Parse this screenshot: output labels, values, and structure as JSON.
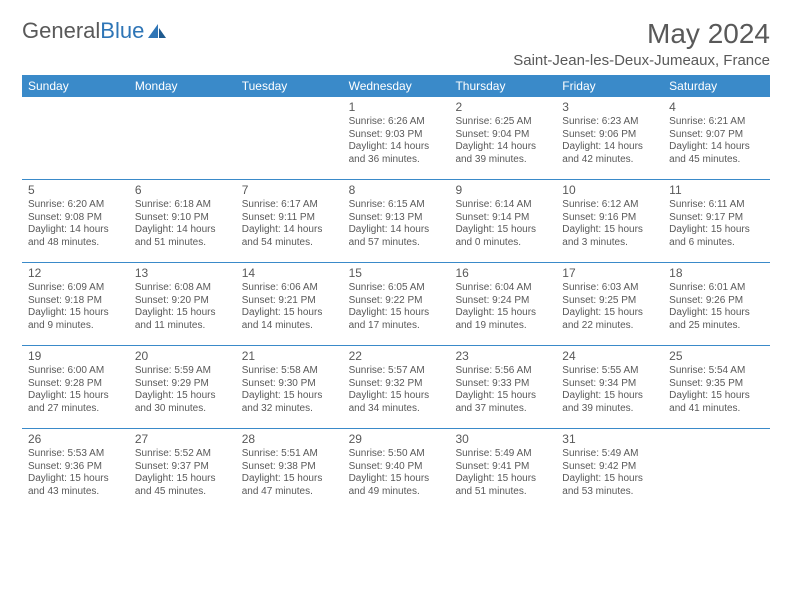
{
  "logo": {
    "text1": "General",
    "text2": "Blue"
  },
  "title": "May 2024",
  "location": "Saint-Jean-les-Deux-Jumeaux, France",
  "colors": {
    "header_bg": "#3a8ac9",
    "header_text": "#ffffff",
    "text": "#595959",
    "rule": "#3a8ac9",
    "logo_gray": "#595959",
    "logo_blue": "#2e75b6",
    "background": "#ffffff"
  },
  "day_names": [
    "Sunday",
    "Monday",
    "Tuesday",
    "Wednesday",
    "Thursday",
    "Friday",
    "Saturday"
  ],
  "weeks": [
    [
      null,
      null,
      null,
      {
        "n": "1",
        "sr": "6:26 AM",
        "ss": "9:03 PM",
        "dl": "14 hours and 36 minutes."
      },
      {
        "n": "2",
        "sr": "6:25 AM",
        "ss": "9:04 PM",
        "dl": "14 hours and 39 minutes."
      },
      {
        "n": "3",
        "sr": "6:23 AM",
        "ss": "9:06 PM",
        "dl": "14 hours and 42 minutes."
      },
      {
        "n": "4",
        "sr": "6:21 AM",
        "ss": "9:07 PM",
        "dl": "14 hours and 45 minutes."
      }
    ],
    [
      {
        "n": "5",
        "sr": "6:20 AM",
        "ss": "9:08 PM",
        "dl": "14 hours and 48 minutes."
      },
      {
        "n": "6",
        "sr": "6:18 AM",
        "ss": "9:10 PM",
        "dl": "14 hours and 51 minutes."
      },
      {
        "n": "7",
        "sr": "6:17 AM",
        "ss": "9:11 PM",
        "dl": "14 hours and 54 minutes."
      },
      {
        "n": "8",
        "sr": "6:15 AM",
        "ss": "9:13 PM",
        "dl": "14 hours and 57 minutes."
      },
      {
        "n": "9",
        "sr": "6:14 AM",
        "ss": "9:14 PM",
        "dl": "15 hours and 0 minutes."
      },
      {
        "n": "10",
        "sr": "6:12 AM",
        "ss": "9:16 PM",
        "dl": "15 hours and 3 minutes."
      },
      {
        "n": "11",
        "sr": "6:11 AM",
        "ss": "9:17 PM",
        "dl": "15 hours and 6 minutes."
      }
    ],
    [
      {
        "n": "12",
        "sr": "6:09 AM",
        "ss": "9:18 PM",
        "dl": "15 hours and 9 minutes."
      },
      {
        "n": "13",
        "sr": "6:08 AM",
        "ss": "9:20 PM",
        "dl": "15 hours and 11 minutes."
      },
      {
        "n": "14",
        "sr": "6:06 AM",
        "ss": "9:21 PM",
        "dl": "15 hours and 14 minutes."
      },
      {
        "n": "15",
        "sr": "6:05 AM",
        "ss": "9:22 PM",
        "dl": "15 hours and 17 minutes."
      },
      {
        "n": "16",
        "sr": "6:04 AM",
        "ss": "9:24 PM",
        "dl": "15 hours and 19 minutes."
      },
      {
        "n": "17",
        "sr": "6:03 AM",
        "ss": "9:25 PM",
        "dl": "15 hours and 22 minutes."
      },
      {
        "n": "18",
        "sr": "6:01 AM",
        "ss": "9:26 PM",
        "dl": "15 hours and 25 minutes."
      }
    ],
    [
      {
        "n": "19",
        "sr": "6:00 AM",
        "ss": "9:28 PM",
        "dl": "15 hours and 27 minutes."
      },
      {
        "n": "20",
        "sr": "5:59 AM",
        "ss": "9:29 PM",
        "dl": "15 hours and 30 minutes."
      },
      {
        "n": "21",
        "sr": "5:58 AM",
        "ss": "9:30 PM",
        "dl": "15 hours and 32 minutes."
      },
      {
        "n": "22",
        "sr": "5:57 AM",
        "ss": "9:32 PM",
        "dl": "15 hours and 34 minutes."
      },
      {
        "n": "23",
        "sr": "5:56 AM",
        "ss": "9:33 PM",
        "dl": "15 hours and 37 minutes."
      },
      {
        "n": "24",
        "sr": "5:55 AM",
        "ss": "9:34 PM",
        "dl": "15 hours and 39 minutes."
      },
      {
        "n": "25",
        "sr": "5:54 AM",
        "ss": "9:35 PM",
        "dl": "15 hours and 41 minutes."
      }
    ],
    [
      {
        "n": "26",
        "sr": "5:53 AM",
        "ss": "9:36 PM",
        "dl": "15 hours and 43 minutes."
      },
      {
        "n": "27",
        "sr": "5:52 AM",
        "ss": "9:37 PM",
        "dl": "15 hours and 45 minutes."
      },
      {
        "n": "28",
        "sr": "5:51 AM",
        "ss": "9:38 PM",
        "dl": "15 hours and 47 minutes."
      },
      {
        "n": "29",
        "sr": "5:50 AM",
        "ss": "9:40 PM",
        "dl": "15 hours and 49 minutes."
      },
      {
        "n": "30",
        "sr": "5:49 AM",
        "ss": "9:41 PM",
        "dl": "15 hours and 51 minutes."
      },
      {
        "n": "31",
        "sr": "5:49 AM",
        "ss": "9:42 PM",
        "dl": "15 hours and 53 minutes."
      },
      null
    ]
  ],
  "labels": {
    "sunrise": "Sunrise:",
    "sunset": "Sunset:",
    "daylight": "Daylight:"
  }
}
